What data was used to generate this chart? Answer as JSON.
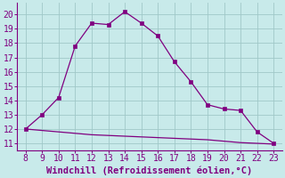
{
  "x": [
    8,
    9,
    10,
    11,
    12,
    13,
    14,
    15,
    16,
    17,
    18,
    19,
    20,
    21,
    22,
    23
  ],
  "y_upper": [
    12.0,
    13.0,
    14.2,
    17.8,
    19.4,
    19.3,
    20.2,
    19.4,
    18.5,
    16.7,
    15.3,
    13.7,
    13.4,
    13.3,
    11.8,
    11.0
  ],
  "y_lower": [
    12.0,
    11.9,
    11.8,
    11.7,
    11.6,
    11.55,
    11.5,
    11.45,
    11.4,
    11.35,
    11.3,
    11.25,
    11.15,
    11.05,
    11.0,
    10.95
  ],
  "line_color": "#800080",
  "bg_color": "#c8eaea",
  "grid_color": "#a0c8c8",
  "xlabel": "Windchill (Refroidissement éolien,°C)",
  "xlim": [
    7.5,
    23.5
  ],
  "ylim": [
    10.5,
    20.8
  ],
  "xticks": [
    8,
    9,
    10,
    11,
    12,
    13,
    14,
    15,
    16,
    17,
    18,
    19,
    20,
    21,
    22,
    23
  ],
  "yticks": [
    11,
    12,
    13,
    14,
    15,
    16,
    17,
    18,
    19,
    20
  ],
  "xlabel_fontsize": 7.5,
  "tick_fontsize": 7
}
